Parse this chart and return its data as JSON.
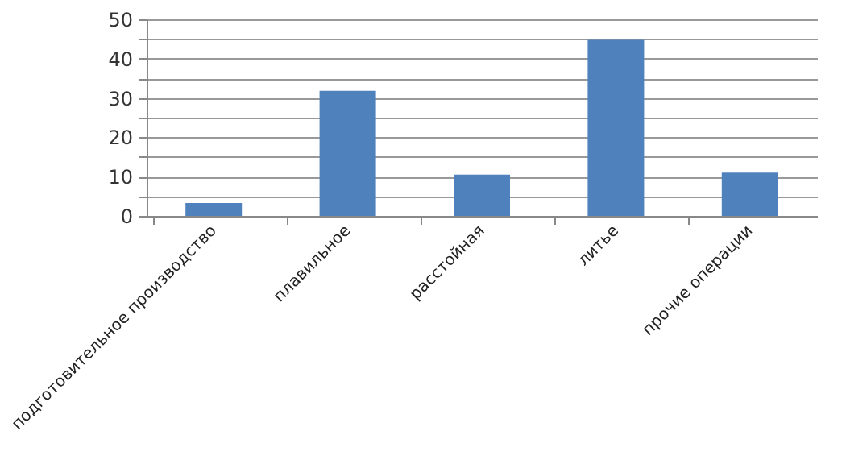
{
  "chart_data": {
    "type": "bar",
    "categories": [
      "подготовительное производство",
      "плавильное",
      "расстойная",
      "литье",
      "прочие операции"
    ],
    "values": [
      3.3,
      31.8,
      10.5,
      44.8,
      11
    ],
    "color": "#4f81bd",
    "ylim": [
      0,
      50
    ],
    "yticks": [
      0,
      {
        "value": 5,
        "label": null
      },
      10,
      {
        "value": 15,
        "label": null
      },
      20,
      {
        "value": 25,
        "label": null
      },
      30,
      {
        "value": 35,
        "label": null
      },
      40,
      {
        "value": 45,
        "label": null
      },
      50
    ],
    "grid": "y"
  }
}
